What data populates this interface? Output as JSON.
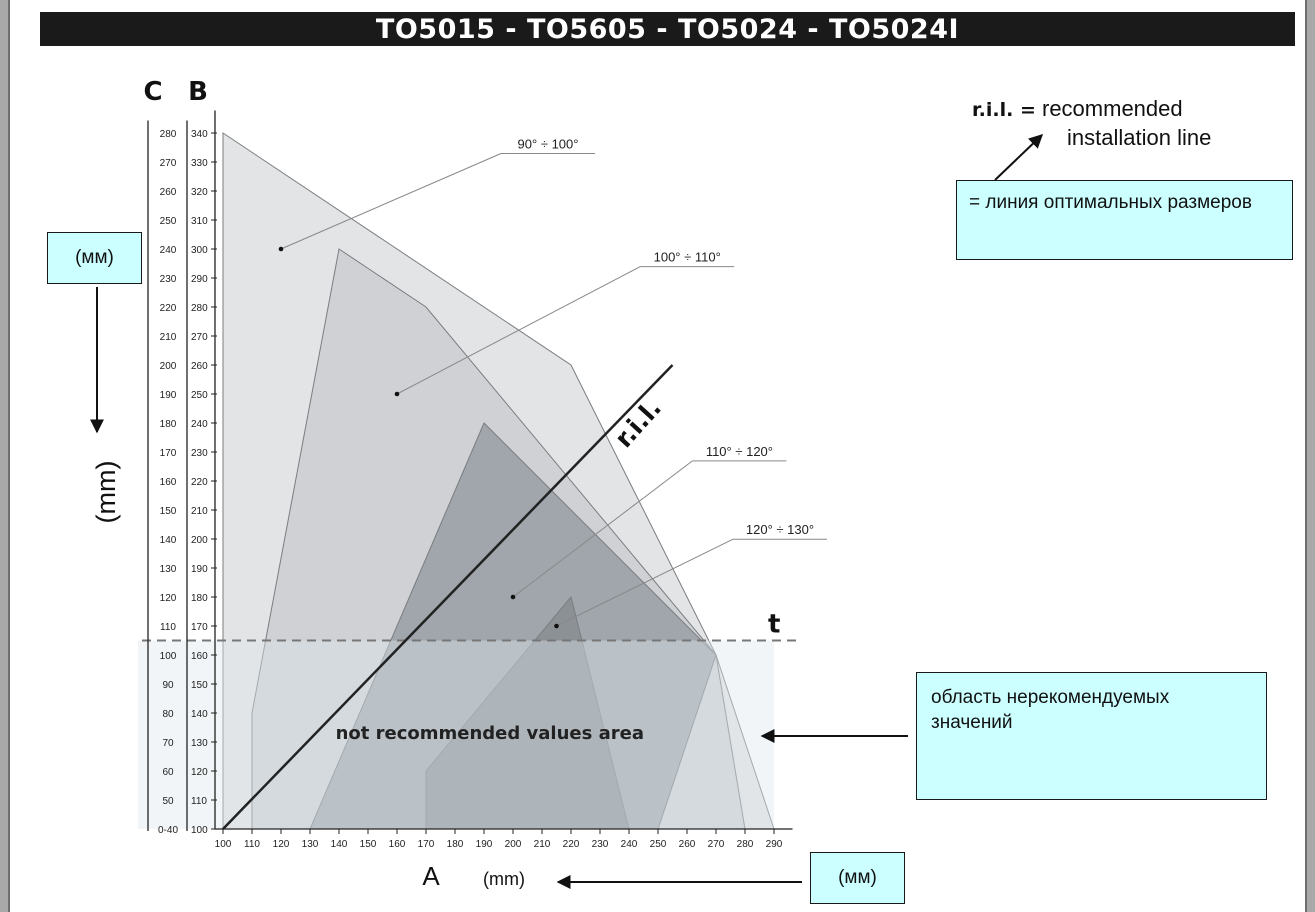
{
  "title": "TO5015 - TO5605 - TO5024 - TO5024I",
  "legend": {
    "abbr": "r.i.l. =",
    "line1": "recommended",
    "line2": "installation line"
  },
  "annotations": {
    "ril_ru": "= линия оптимальных размеров",
    "area_ru": "область нерекомендуемых значений",
    "mm_left": "(мм)",
    "mm_bottom": "(мм)"
  },
  "chart_data": {
    "type": "area",
    "axes": {
      "y_label_C": "C",
      "y_label_B": "B",
      "y_unit": "(mm)",
      "x_label": "A",
      "x_unit": "(mm)",
      "x_ticks": [
        100,
        110,
        120,
        130,
        140,
        150,
        160,
        170,
        180,
        190,
        200,
        210,
        220,
        230,
        240,
        250,
        260,
        270,
        280,
        290
      ],
      "B_ticks": [
        100,
        110,
        120,
        130,
        140,
        150,
        160,
        170,
        180,
        190,
        200,
        210,
        220,
        230,
        240,
        250,
        260,
        270,
        280,
        290,
        300,
        310,
        320,
        330,
        340
      ],
      "C_ticks": [
        "0-40",
        "50",
        "60",
        "70",
        "80",
        "90",
        "100",
        "110",
        "120",
        "130",
        "140",
        "150",
        "160",
        "170",
        "180",
        "190",
        "200",
        "210",
        "220",
        "230",
        "240",
        "250",
        "260",
        "270",
        "280"
      ],
      "x_range": [
        100,
        295
      ],
      "B_range": [
        100,
        345
      ]
    },
    "regions": [
      {
        "label": "90° ÷ 100°",
        "color": "#e3e4e6",
        "points": [
          [
            100,
            340
          ],
          [
            220,
            260
          ],
          [
            270,
            160
          ],
          [
            290,
            100
          ],
          [
            100,
            100
          ]
        ],
        "marker": [
          120,
          300
        ],
        "label_at": [
          200,
          335
        ]
      },
      {
        "label": "100° ÷ 110°",
        "color": "#cfd1d4",
        "points": [
          [
            140,
            300
          ],
          [
            170,
            280
          ],
          [
            270,
            160
          ],
          [
            280,
            100
          ],
          [
            110,
            100
          ],
          [
            110,
            140
          ]
        ],
        "marker": [
          160,
          250
        ],
        "label_at": [
          248,
          296
        ]
      },
      {
        "label": "110° ÷ 120°",
        "color": "#a0a6ac",
        "points": [
          [
            190,
            240
          ],
          [
            270,
            160
          ],
          [
            250,
            100
          ],
          [
            130,
            100
          ]
        ],
        "marker": [
          200,
          180
        ],
        "label_at": [
          266,
          229
        ]
      },
      {
        "label": "120° ÷ 130°",
        "color": "#8c9196",
        "points": [
          [
            220,
            180
          ],
          [
            240,
            100
          ],
          [
            170,
            100
          ],
          [
            170,
            120
          ]
        ],
        "marker": [
          215,
          170
        ],
        "label_at": [
          280,
          202
        ]
      }
    ],
    "ril": {
      "label": "r.i.l.",
      "from": [
        100,
        100
      ],
      "to": [
        255,
        260
      ]
    },
    "threshold": {
      "label": "t",
      "B": 165
    },
    "not_recommended_label": "not recommended values area"
  }
}
